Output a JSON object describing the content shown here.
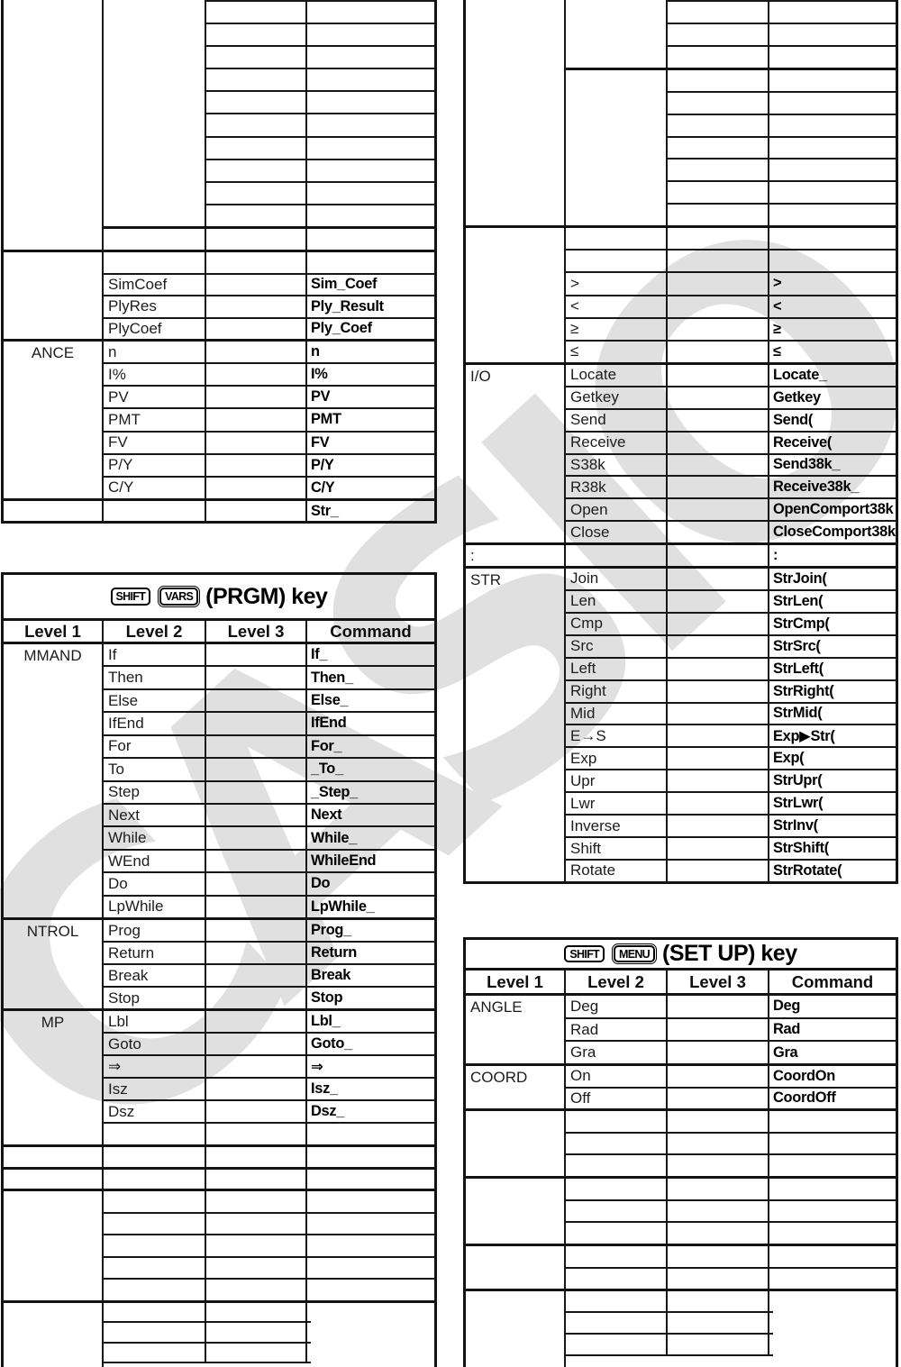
{
  "watermark": {
    "text": "CASIO",
    "color": "#e0e0e0"
  },
  "tables": {
    "left_top": {
      "name": "top-left-partial-table",
      "bands": [
        {
          "kind": "topcut",
          "level1": "",
          "subs": [
            {
              "level2": "",
              "rows": [
                [
                  "",
                  ""
                ],
                [
                  "",
                  ""
                ],
                [
                  "",
                  ""
                ],
                [
                  "",
                  ""
                ],
                [
                  "",
                  ""
                ],
                [
                  "",
                  ""
                ],
                [
                  "",
                  ""
                ],
                [
                  "",
                  ""
                ],
                [
                  "",
                  ""
                ],
                [
                  "",
                  ""
                ]
              ]
            }
          ],
          "tail": [
            "",
            "",
            ""
          ]
        },
        {
          "kind": "l1",
          "level1": "",
          "rows": [
            [
              "",
              "",
              ""
            ],
            [
              "SimCoef",
              "",
              "Sim_Coef"
            ],
            [
              "PlyRes",
              "",
              "Ply_Result"
            ],
            [
              "PlyCoef",
              "",
              "Ply_Coef"
            ]
          ]
        },
        {
          "kind": "l1",
          "level1": "ANCE",
          "rows": [
            [
              "n",
              "",
              "n"
            ],
            [
              "I%",
              "",
              "I%"
            ],
            [
              "PV",
              "",
              "PV"
            ],
            [
              "PMT",
              "",
              "PMT"
            ],
            [
              "FV",
              "",
              "FV"
            ],
            [
              "P/Y",
              "",
              "P/Y"
            ],
            [
              "C/Y",
              "",
              "C/Y"
            ]
          ]
        },
        {
          "kind": "plain",
          "cells": [
            "",
            "",
            "",
            "Str_"
          ]
        }
      ]
    },
    "prgm": {
      "name": "prgm-key-table",
      "title": {
        "keys": [
          {
            "label": "SHIFT",
            "style": "single"
          },
          {
            "label": "VARS",
            "style": "double"
          }
        ],
        "label": "(PRGM) key"
      },
      "headers": [
        "Level 1",
        "Level 2",
        "Level 3",
        "Command"
      ],
      "bands": [
        {
          "kind": "l1",
          "level1": "MMAND",
          "rows": [
            [
              "If",
              "",
              "If_"
            ],
            [
              "Then",
              "",
              "Then_"
            ],
            [
              "Else",
              "",
              "Else_"
            ],
            [
              "IfEnd",
              "",
              "IfEnd"
            ],
            [
              "For",
              "",
              "For_"
            ],
            [
              "To",
              "",
              "_To_"
            ],
            [
              "Step",
              "",
              "_Step_"
            ],
            [
              "Next",
              "",
              "Next"
            ],
            [
              "While",
              "",
              "While_"
            ],
            [
              "WEnd",
              "",
              "WhileEnd"
            ],
            [
              "Do",
              "",
              "Do"
            ],
            [
              "LpWhile",
              "",
              "LpWhile_"
            ]
          ]
        },
        {
          "kind": "l1",
          "level1": "NTROL",
          "rows": [
            [
              "Prog",
              "",
              "Prog_"
            ],
            [
              "Return",
              "",
              "Return"
            ],
            [
              "Break",
              "",
              "Break"
            ],
            [
              "Stop",
              "",
              "Stop"
            ]
          ]
        },
        {
          "kind": "l1",
          "level1": "MP",
          "rows": [
            [
              "Lbl",
              "",
              "Lbl_"
            ],
            [
              "Goto",
              "",
              "Goto_"
            ],
            [
              "⇒",
              "",
              "⇒"
            ],
            [
              "Isz",
              "",
              "Isz_"
            ],
            [
              "Dsz",
              "",
              "Dsz_"
            ],
            [
              "",
              "",
              ""
            ]
          ]
        },
        {
          "kind": "plain",
          "cells": [
            "",
            "",
            "",
            ""
          ]
        },
        {
          "kind": "plain",
          "cells": [
            "",
            "",
            "",
            ""
          ]
        },
        {
          "kind": "l1",
          "level1": "",
          "rows": [
            [
              "",
              "",
              ""
            ],
            [
              "",
              "",
              ""
            ],
            [
              "",
              "",
              ""
            ],
            [
              "",
              "",
              ""
            ],
            [
              "",
              "",
              ""
            ]
          ]
        },
        {
          "kind": "l1",
          "level1": "",
          "cut": true,
          "rows": [
            [
              "",
              "",
              ""
            ],
            [
              "",
              "",
              ""
            ],
            [
              "",
              "",
              ""
            ]
          ]
        }
      ]
    },
    "right_top": {
      "name": "top-right-partial-table",
      "bands": [
        {
          "kind": "topcut",
          "level1": "",
          "subs": [
            {
              "level2": "",
              "rows": [
                [
                  "",
                  ""
                ],
                [
                  "",
                  ""
                ],
                [
                  "",
                  ""
                ]
              ]
            },
            {
              "level2": "",
              "rows": [
                [
                  "",
                  ""
                ],
                [
                  "",
                  ""
                ],
                [
                  "",
                  ""
                ],
                [
                  "",
                  ""
                ],
                [
                  "",
                  ""
                ],
                [
                  "",
                  ""
                ],
                [
                  "",
                  ""
                ]
              ]
            }
          ]
        },
        {
          "kind": "l1",
          "level1": "",
          "rows": [
            [
              "",
              "",
              ""
            ],
            [
              "",
              "",
              ""
            ],
            [
              ">",
              "",
              ">"
            ],
            [
              "<",
              "",
              "<"
            ],
            [
              "≥",
              "",
              "≥"
            ],
            [
              "≤",
              "",
              "≤"
            ]
          ]
        },
        {
          "kind": "l1",
          "level1": "I/O",
          "rows": [
            [
              "Locate",
              "",
              "Locate_"
            ],
            [
              "Getkey",
              "",
              "Getkey"
            ],
            [
              "Send",
              "",
              "Send("
            ],
            [
              "Receive",
              "",
              "Receive("
            ],
            [
              "S38k",
              "",
              "Send38k_"
            ],
            [
              "R38k",
              "",
              "Receive38k_"
            ],
            [
              "Open",
              "",
              "OpenComport38k"
            ],
            [
              "Close",
              "",
              "CloseComport38k"
            ]
          ]
        },
        {
          "kind": "plain",
          "cells": [
            ":",
            "",
            "",
            ":"
          ]
        },
        {
          "kind": "l1",
          "level1": "STR",
          "rows": [
            [
              "Join",
              "",
              "StrJoin("
            ],
            [
              "Len",
              "",
              "StrLen("
            ],
            [
              "Cmp",
              "",
              "StrCmp("
            ],
            [
              "Src",
              "",
              "StrSrc("
            ],
            [
              "Left",
              "",
              "StrLeft("
            ],
            [
              "Right",
              "",
              "StrRight("
            ],
            [
              "Mid",
              "",
              "StrMid("
            ],
            [
              "E→S",
              "",
              "Exp▶Str("
            ],
            [
              "Exp",
              "",
              "Exp("
            ],
            [
              "Upr",
              "",
              "StrUpr("
            ],
            [
              "Lwr",
              "",
              "StrLwr("
            ],
            [
              "Inverse",
              "",
              "StrInv("
            ],
            [
              "Shift",
              "",
              "StrShift("
            ],
            [
              "Rotate",
              "",
              "StrRotate("
            ]
          ]
        }
      ]
    },
    "setup": {
      "name": "setup-key-table",
      "title": {
        "keys": [
          {
            "label": "SHIFT",
            "style": "single"
          },
          {
            "label": "MENU",
            "style": "double"
          }
        ],
        "label": "(SET UP) key"
      },
      "headers": [
        "Level 1",
        "Level 2",
        "Level 3",
        "Command"
      ],
      "bands": [
        {
          "kind": "l1",
          "level1": "ANGLE",
          "rows": [
            [
              "Deg",
              "",
              "Deg"
            ],
            [
              "Rad",
              "",
              "Rad"
            ],
            [
              "Gra",
              "",
              "Gra"
            ]
          ]
        },
        {
          "kind": "l1",
          "level1": "COORD",
          "rows": [
            [
              "On",
              "",
              "CoordOn"
            ],
            [
              "Off",
              "",
              "CoordOff"
            ]
          ]
        },
        {
          "kind": "l1",
          "level1": "",
          "rows": [
            [
              "",
              "",
              ""
            ],
            [
              "",
              "",
              ""
            ],
            [
              "",
              "",
              ""
            ]
          ]
        },
        {
          "kind": "l1",
          "level1": "",
          "rows": [
            [
              "",
              "",
              ""
            ],
            [
              "",
              "",
              ""
            ],
            [
              "",
              "",
              ""
            ]
          ]
        },
        {
          "kind": "l1",
          "level1": "",
          "rows": [
            [
              "",
              "",
              ""
            ],
            [
              "",
              "",
              ""
            ]
          ]
        },
        {
          "kind": "l1",
          "level1": "",
          "cut": true,
          "rows": [
            [
              "",
              "",
              ""
            ],
            [
              "",
              "",
              ""
            ],
            [
              "",
              "",
              ""
            ]
          ]
        }
      ]
    }
  }
}
